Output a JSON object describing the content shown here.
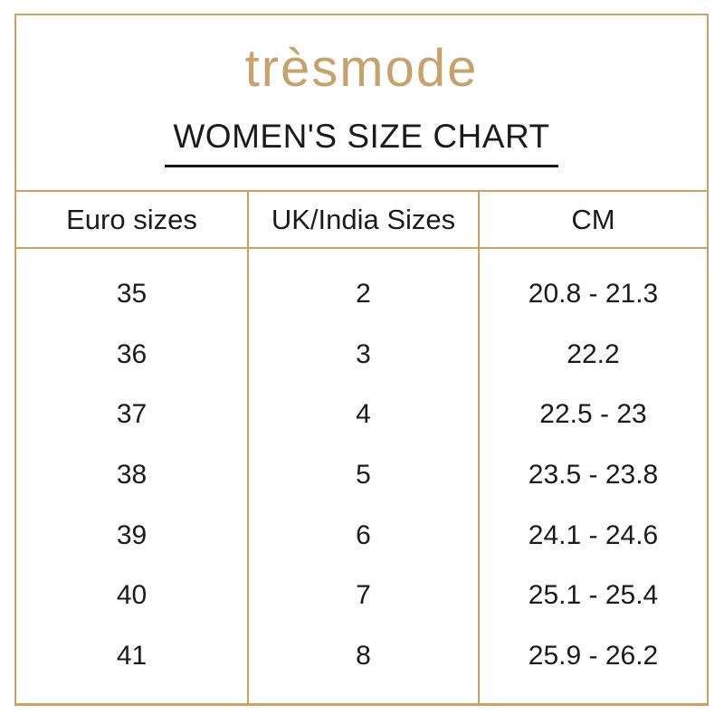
{
  "brand": {
    "logo_text": "trèsmode"
  },
  "header": {
    "title": "WOMEN'S SIZE CHART"
  },
  "chart_data": {
    "type": "table",
    "title": "WOMEN'S SIZE CHART",
    "columns": [
      "Euro sizes",
      "UK/India Sizes",
      "CM"
    ],
    "rows": [
      [
        "35",
        "2",
        "20.8 - 21.3"
      ],
      [
        "36",
        "3",
        "22.2"
      ],
      [
        "37",
        "4",
        "22.5 - 23"
      ],
      [
        "38",
        "5",
        "23.5 - 23.8"
      ],
      [
        "39",
        "6",
        "24.1 - 24.6"
      ],
      [
        "40",
        "7",
        "25.1 - 25.4"
      ],
      [
        "41",
        "8",
        "25.9 - 26.2"
      ]
    ]
  },
  "colors": {
    "border_gold": "#C9A45E",
    "logo_gold": "#C5A36A",
    "text": "#1B1B1B",
    "background": "#FFFFFF"
  }
}
